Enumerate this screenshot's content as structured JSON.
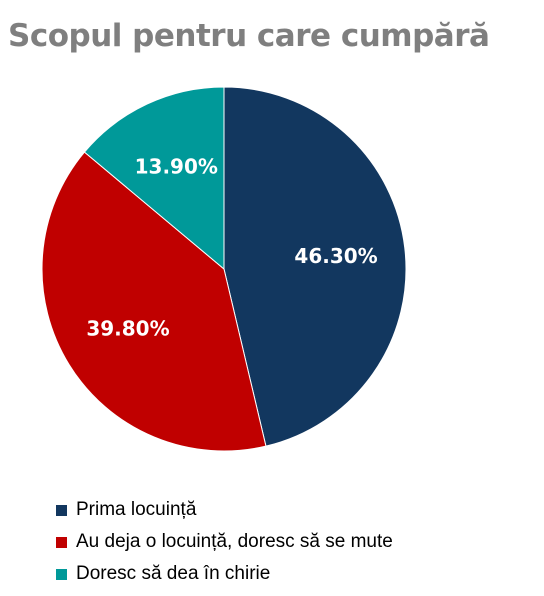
{
  "chart_data": {
    "type": "pie",
    "title": "Scopul pentru care cumpără",
    "categories": [
      "Prima locuință",
      "Au deja o locuință, doresc să se mute",
      "Doresc să dea în chirie"
    ],
    "values": [
      46.3,
      39.8,
      13.9
    ],
    "data_labels": [
      "46.30%",
      "39.80%",
      "13.90%"
    ],
    "colors": [
      "#12375f",
      "#c00000",
      "#009999"
    ],
    "start_angle_deg": 0,
    "direction": "clockwise",
    "legend_position": "bottom-left"
  }
}
